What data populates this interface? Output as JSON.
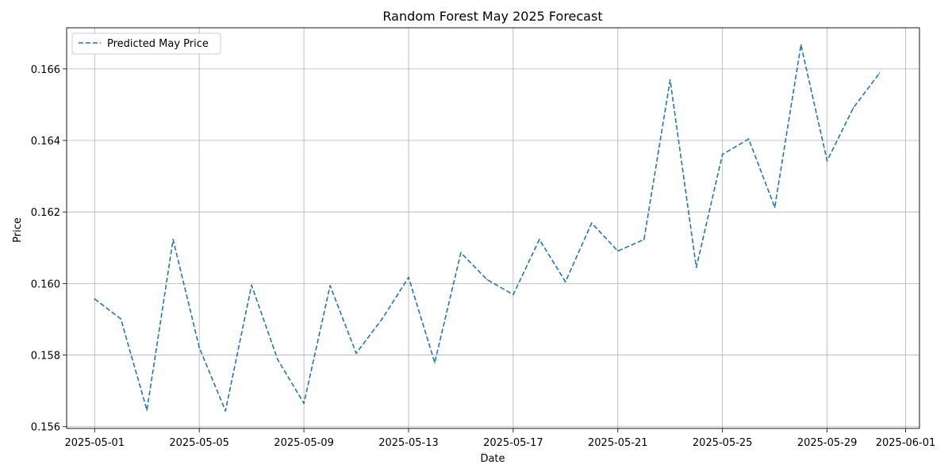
{
  "chart_data": {
    "type": "line",
    "title": "Random Forest May 2025 Forecast",
    "xlabel": "Date",
    "ylabel": "Price",
    "x_axis_type": "date",
    "xlim": [
      "2025-04-29",
      "2025-06-01"
    ],
    "ylim": [
      0.15595,
      0.16715
    ],
    "grid": true,
    "legend_position": "top-left",
    "x_ticks": [
      "2025-05-01",
      "2025-05-05",
      "2025-05-09",
      "2025-05-13",
      "2025-05-17",
      "2025-05-21",
      "2025-05-25",
      "2025-05-29",
      "2025-06-01"
    ],
    "y_ticks": [
      0.156,
      0.158,
      0.16,
      0.162,
      0.164,
      0.166
    ],
    "y_tick_labels": [
      "0.156",
      "0.158",
      "0.160",
      "0.162",
      "0.164",
      "0.166"
    ],
    "series": [
      {
        "name": "Predicted May Price",
        "color": "#1f77b4",
        "line_style": "dashed",
        "x": [
          "2025-05-01",
          "2025-05-02",
          "2025-05-03",
          "2025-05-04",
          "2025-05-05",
          "2025-05-06",
          "2025-05-07",
          "2025-05-08",
          "2025-05-09",
          "2025-05-10",
          "2025-05-11",
          "2025-05-12",
          "2025-05-13",
          "2025-05-14",
          "2025-05-15",
          "2025-05-16",
          "2025-05-17",
          "2025-05-18",
          "2025-05-19",
          "2025-05-20",
          "2025-05-21",
          "2025-05-22",
          "2025-05-23",
          "2025-05-24",
          "2025-05-25",
          "2025-05-26",
          "2025-05-27",
          "2025-05-28",
          "2025-05-29",
          "2025-05-30",
          "2025-05-31"
        ],
        "values": [
          0.15957,
          0.15901,
          0.15646,
          0.16123,
          0.15821,
          0.15644,
          0.15995,
          0.15787,
          0.15665,
          0.15994,
          0.15805,
          0.15902,
          0.16017,
          0.15779,
          0.16086,
          0.16011,
          0.15969,
          0.16123,
          0.16005,
          0.16169,
          0.16091,
          0.16123,
          0.16569,
          0.16045,
          0.16361,
          0.16404,
          0.16213,
          0.16667,
          0.16343,
          0.16491,
          0.16588
        ]
      }
    ]
  }
}
